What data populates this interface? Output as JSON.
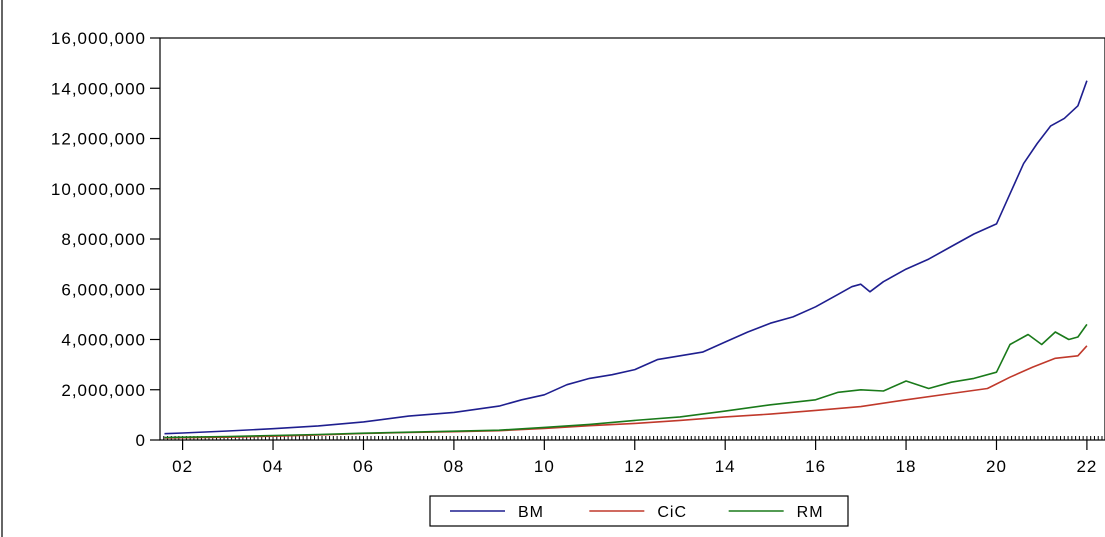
{
  "chart_data": {
    "type": "line",
    "title": "",
    "xlabel": "",
    "ylabel": "",
    "xlim": [
      2001.5,
      2022.4
    ],
    "ylim": [
      0,
      16000000
    ],
    "y_ticks": [
      0,
      2000000,
      4000000,
      6000000,
      8000000,
      10000000,
      12000000,
      14000000,
      16000000
    ],
    "y_tick_labels": [
      "0",
      "2,000,000",
      "4,000,000",
      "6,000,000",
      "8,000,000",
      "10,000,000",
      "12,000,000",
      "14,000,000",
      "16,000,000"
    ],
    "x_ticks": [
      2002,
      2004,
      2006,
      2008,
      2010,
      2012,
      2014,
      2016,
      2018,
      2020,
      2022
    ],
    "x_tick_labels": [
      "02",
      "04",
      "06",
      "08",
      "10",
      "12",
      "14",
      "16",
      "18",
      "20",
      "22"
    ],
    "grid": false,
    "legend_position": "bottom-center",
    "series": [
      {
        "name": "BM",
        "color": "#1f1f8f",
        "points": [
          [
            2001.6,
            250000
          ],
          [
            2002.0,
            280000
          ],
          [
            2003.0,
            360000
          ],
          [
            2004.0,
            450000
          ],
          [
            2005.0,
            560000
          ],
          [
            2006.0,
            720000
          ],
          [
            2007.0,
            950000
          ],
          [
            2008.0,
            1100000
          ],
          [
            2009.0,
            1350000
          ],
          [
            2009.5,
            1600000
          ],
          [
            2010.0,
            1800000
          ],
          [
            2010.5,
            2200000
          ],
          [
            2011.0,
            2450000
          ],
          [
            2011.5,
            2600000
          ],
          [
            2012.0,
            2800000
          ],
          [
            2012.5,
            3200000
          ],
          [
            2013.0,
            3350000
          ],
          [
            2013.5,
            3500000
          ],
          [
            2014.0,
            3900000
          ],
          [
            2014.5,
            4300000
          ],
          [
            2015.0,
            4650000
          ],
          [
            2015.5,
            4900000
          ],
          [
            2016.0,
            5300000
          ],
          [
            2016.5,
            5800000
          ],
          [
            2016.8,
            6100000
          ],
          [
            2017.0,
            6200000
          ],
          [
            2017.2,
            5900000
          ],
          [
            2017.5,
            6300000
          ],
          [
            2018.0,
            6800000
          ],
          [
            2018.5,
            7200000
          ],
          [
            2019.0,
            7700000
          ],
          [
            2019.5,
            8200000
          ],
          [
            2020.0,
            8600000
          ],
          [
            2020.3,
            9800000
          ],
          [
            2020.6,
            11000000
          ],
          [
            2020.9,
            11800000
          ],
          [
            2021.2,
            12500000
          ],
          [
            2021.5,
            12800000
          ],
          [
            2021.8,
            13300000
          ],
          [
            2022.0,
            14300000
          ]
        ]
      },
      {
        "name": "CiC",
        "color": "#c0392b",
        "points": [
          [
            2001.6,
            80000
          ],
          [
            2002.0,
            90000
          ],
          [
            2003.0,
            110000
          ],
          [
            2004.0,
            150000
          ],
          [
            2005.0,
            200000
          ],
          [
            2006.0,
            260000
          ],
          [
            2007.0,
            300000
          ],
          [
            2008.0,
            330000
          ],
          [
            2009.0,
            370000
          ],
          [
            2010.0,
            460000
          ],
          [
            2011.0,
            570000
          ],
          [
            2012.0,
            660000
          ],
          [
            2013.0,
            780000
          ],
          [
            2014.0,
            920000
          ],
          [
            2015.0,
            1030000
          ],
          [
            2016.0,
            1180000
          ],
          [
            2017.0,
            1330000
          ],
          [
            2018.0,
            1600000
          ],
          [
            2019.0,
            1850000
          ],
          [
            2019.8,
            2050000
          ],
          [
            2020.3,
            2500000
          ],
          [
            2020.8,
            2900000
          ],
          [
            2021.3,
            3250000
          ],
          [
            2021.8,
            3350000
          ],
          [
            2022.0,
            3750000
          ]
        ]
      },
      {
        "name": "RM",
        "color": "#1a7a1a",
        "points": [
          [
            2001.6,
            100000
          ],
          [
            2002.0,
            110000
          ],
          [
            2003.0,
            140000
          ],
          [
            2004.0,
            180000
          ],
          [
            2005.0,
            220000
          ],
          [
            2006.0,
            270000
          ],
          [
            2007.0,
            310000
          ],
          [
            2008.0,
            350000
          ],
          [
            2009.0,
            390000
          ],
          [
            2010.0,
            500000
          ],
          [
            2011.0,
            620000
          ],
          [
            2012.0,
            780000
          ],
          [
            2013.0,
            920000
          ],
          [
            2014.0,
            1150000
          ],
          [
            2015.0,
            1400000
          ],
          [
            2016.0,
            1600000
          ],
          [
            2016.5,
            1900000
          ],
          [
            2017.0,
            2000000
          ],
          [
            2017.5,
            1950000
          ],
          [
            2018.0,
            2350000
          ],
          [
            2018.5,
            2050000
          ],
          [
            2019.0,
            2300000
          ],
          [
            2019.5,
            2450000
          ],
          [
            2020.0,
            2700000
          ],
          [
            2020.3,
            3800000
          ],
          [
            2020.7,
            4200000
          ],
          [
            2021.0,
            3800000
          ],
          [
            2021.3,
            4300000
          ],
          [
            2021.6,
            4000000
          ],
          [
            2021.8,
            4100000
          ],
          [
            2022.0,
            4600000
          ]
        ]
      }
    ]
  }
}
